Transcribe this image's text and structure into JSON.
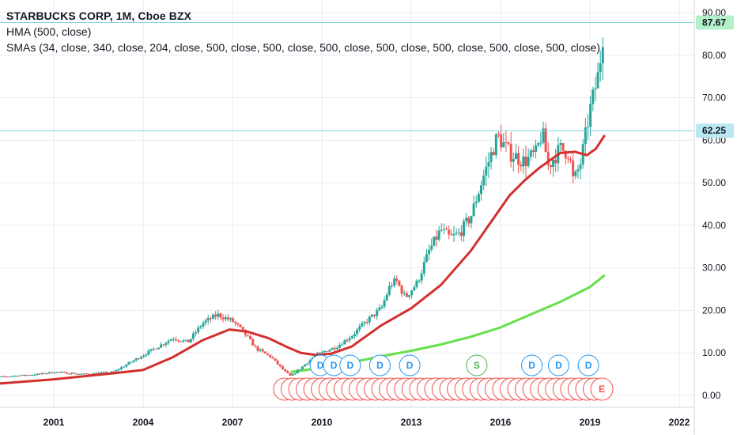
{
  "legend": {
    "title": "STARBUCKS CORP, 1M, Cboe BZX",
    "hma": "HMA (500, close)",
    "smas": "SMAs (34, close, 340, close, 204, close, 500, close, 500, close, 500, close, 500, close, 500, close, 500, close, 500, close)"
  },
  "colors": {
    "up": "#26a69a",
    "down": "#ef5350",
    "hma": "#d32f2f",
    "sma": "#66e04a",
    "hline": "#7fd3e6",
    "price_tag": "#b2f0c8",
    "level_tag": "#b9e7f2",
    "dividend": "#2196f3",
    "split": "#4caf50",
    "earnings": "#ef5350",
    "grid": "#e8ebf0"
  },
  "chart_data": {
    "type": "candlestick",
    "x_ticks": [
      2001,
      2004,
      2007,
      2010,
      2013,
      2016,
      2019,
      2022
    ],
    "y_ticks": [
      "0.00",
      "10.00",
      "20.00",
      "30.00",
      "40.00",
      "50.00",
      "60.00",
      "70.00",
      "80.00",
      "90.00"
    ],
    "xlim": [
      1998.6,
      2023.0
    ],
    "ylim": [
      -2.5,
      93.0
    ],
    "price_keypoints": [
      [
        1998.6,
        4.0
      ],
      [
        1999.5,
        4.5
      ],
      [
        2000.5,
        5.0
      ],
      [
        2001.0,
        5.5
      ],
      [
        2002.0,
        5.0
      ],
      [
        2003.0,
        5.5
      ],
      [
        2004.0,
        9.5
      ],
      [
        2005.0,
        13.5
      ],
      [
        2005.5,
        12.5
      ],
      [
        2006.0,
        17.0
      ],
      [
        2006.5,
        19.0
      ],
      [
        2007.0,
        17.5
      ],
      [
        2007.3,
        15.5
      ],
      [
        2007.8,
        11.0
      ],
      [
        2008.3,
        9.0
      ],
      [
        2008.7,
        6.0
      ],
      [
        2008.95,
        4.5
      ],
      [
        2009.3,
        6.5
      ],
      [
        2009.8,
        9.5
      ],
      [
        2010.5,
        11.5
      ],
      [
        2011.0,
        14.0
      ],
      [
        2011.5,
        17.5
      ],
      [
        2012.0,
        20.5
      ],
      [
        2012.3,
        26.0
      ],
      [
        2012.5,
        27.0
      ],
      [
        2012.8,
        23.0
      ],
      [
        2013.2,
        26.5
      ],
      [
        2013.6,
        34.0
      ],
      [
        2014.0,
        39.0
      ],
      [
        2014.3,
        37.0
      ],
      [
        2014.6,
        38.0
      ],
      [
        2015.0,
        42.0
      ],
      [
        2015.4,
        51.0
      ],
      [
        2015.7,
        57.0
      ],
      [
        2015.9,
        61.0
      ],
      [
        2016.3,
        57.0
      ],
      [
        2016.8,
        55.0
      ],
      [
        2017.2,
        57.0
      ],
      [
        2017.4,
        62.0
      ],
      [
        2017.6,
        54.0
      ],
      [
        2018.0,
        58.0
      ],
      [
        2018.3,
        57.0
      ],
      [
        2018.45,
        50.0
      ],
      [
        2018.7,
        55.0
      ],
      [
        2019.0,
        67.0
      ],
      [
        2019.3,
        76.0
      ],
      [
        2019.48,
        87.67
      ]
    ],
    "hma_points": [
      [
        1998.6,
        2.5
      ],
      [
        2001.0,
        3.8
      ],
      [
        2003.0,
        5.2
      ],
      [
        2004.0,
        6.0
      ],
      [
        2005.0,
        9.0
      ],
      [
        2006.0,
        13.0
      ],
      [
        2006.9,
        15.5
      ],
      [
        2007.5,
        15.0
      ],
      [
        2008.2,
        13.5
      ],
      [
        2008.8,
        11.5
      ],
      [
        2009.3,
        10.0
      ],
      [
        2009.8,
        9.5
      ],
      [
        2010.3,
        9.8
      ],
      [
        2011.0,
        11.5
      ],
      [
        2011.5,
        14.0
      ],
      [
        2012.0,
        16.5
      ],
      [
        2013.0,
        20.5
      ],
      [
        2014.0,
        26.0
      ],
      [
        2015.0,
        34.0
      ],
      [
        2015.8,
        42.0
      ],
      [
        2016.3,
        47.0
      ],
      [
        2016.8,
        50.5
      ],
      [
        2017.3,
        53.5
      ],
      [
        2018.0,
        57.0
      ],
      [
        2018.5,
        57.3
      ],
      [
        2018.9,
        56.5
      ],
      [
        2019.2,
        58.0
      ],
      [
        2019.5,
        61.2
      ]
    ],
    "sma_points": [
      [
        2008.95,
        5.5
      ],
      [
        2010.0,
        6.5
      ],
      [
        2011.0,
        7.8
      ],
      [
        2012.0,
        9.2
      ],
      [
        2013.0,
        10.5
      ],
      [
        2014.0,
        12.0
      ],
      [
        2015.0,
        13.8
      ],
      [
        2016.0,
        16.0
      ],
      [
        2017.0,
        19.0
      ],
      [
        2018.0,
        22.0
      ],
      [
        2019.0,
        25.5
      ],
      [
        2019.5,
        28.3
      ]
    ],
    "horizontal_lines": [
      87.67,
      62.25
    ],
    "price_tags": [
      "87.67",
      "62.25"
    ],
    "dividend_years": [
      2009.95,
      2010.4,
      2010.95,
      2011.95,
      2012.95
    ],
    "dividend_years_late": [
      2017.05,
      2017.95,
      2018.95
    ],
    "dividend_label": "D",
    "split_year": 2015.2,
    "split_label": "S",
    "earnings_range": [
      2008.75,
      2019.4
    ],
    "earnings_count": 43,
    "earnings_label": "E"
  }
}
